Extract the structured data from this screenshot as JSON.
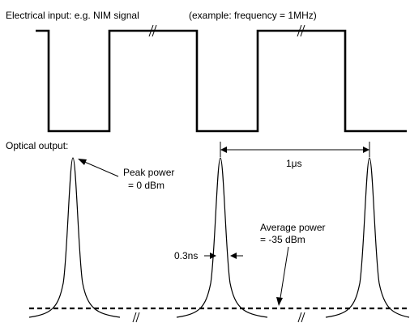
{
  "labels": {
    "electrical_input": "Electrical input: e.g. NIM signal",
    "frequency_example": "(example: frequency = 1MHz)",
    "optical_output": "Optical output:",
    "peak_power_line1": "Peak power",
    "peak_power_line2": "= 0 dBm",
    "period": "1μs",
    "pulse_width": "0.3ns",
    "average_power_line1": "Average power",
    "average_power_line2": "= -35 dBm"
  }
}
